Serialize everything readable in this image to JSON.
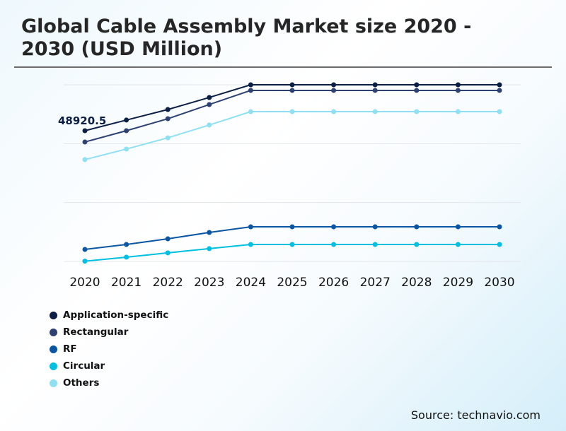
{
  "chart_data": {
    "type": "line",
    "title": "Global Cable Assembly Market size 2020 - 2030 (USD Million)",
    "categories": [
      "2020",
      "2021",
      "2022",
      "2023",
      "2024",
      "2025",
      "2026",
      "2027",
      "2028",
      "2029",
      "2030"
    ],
    "ylim": [
      0,
      66100
    ],
    "grid": true,
    "legend_position": "bottom-left",
    "annotation": "48920.5",
    "series": [
      {
        "name": "Application-specific",
        "color": "#0b1f45",
        "values": [
          48920.5,
          52900,
          56850,
          61350,
          66100,
          66100,
          66100,
          66100,
          66100,
          66100,
          66100
        ]
      },
      {
        "name": "Rectangular",
        "color": "#2e4272",
        "values": [
          44700,
          48920,
          53400,
          58700,
          64000,
          64000,
          64000,
          64000,
          64000,
          64000,
          64000
        ]
      },
      {
        "name": "RF",
        "color": "#0a56a3",
        "values": [
          4500,
          6350,
          8450,
          10850,
          12950,
          12950,
          12950,
          12950,
          12950,
          12950,
          12950
        ]
      },
      {
        "name": "Circular",
        "color": "#00bfe0",
        "values": [
          100,
          1600,
          3200,
          4800,
          6350,
          6350,
          6350,
          6350,
          6350,
          6350,
          6350
        ]
      },
      {
        "name": "Others",
        "color": "#8ee0f2",
        "values": [
          38100,
          42050,
          46250,
          51050,
          56050,
          56050,
          56050,
          56050,
          56050,
          56050,
          56050
        ]
      }
    ]
  },
  "source": "Source: technavio.com"
}
